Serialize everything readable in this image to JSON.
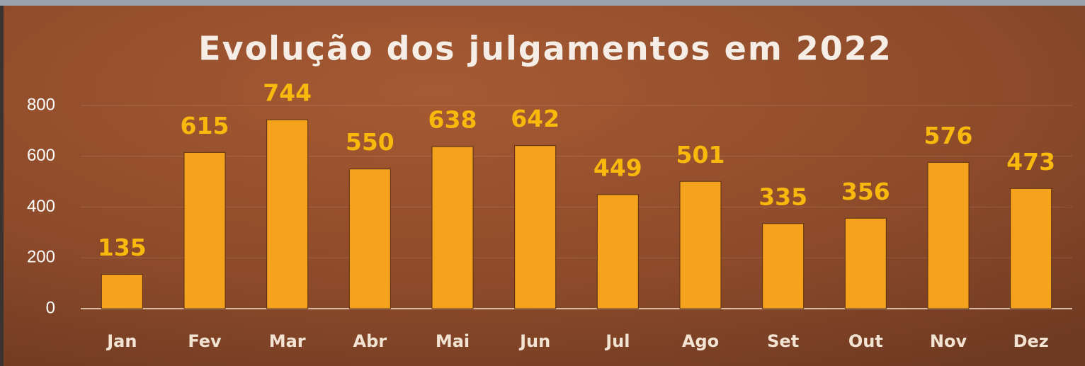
{
  "chart_data": {
    "type": "bar",
    "title": "Evolução dos julgamentos em 2022",
    "categories": [
      "Jan",
      "Fev",
      "Mar",
      "Abr",
      "Mai",
      "Jun",
      "Jul",
      "Ago",
      "Set",
      "Out",
      "Nov",
      "Dez"
    ],
    "values": [
      135,
      615,
      744,
      550,
      638,
      642,
      449,
      501,
      335,
      356,
      576,
      473
    ],
    "color": "#f5a31c",
    "ylim": [
      0,
      800
    ],
    "yticks": [
      0,
      200,
      400,
      600,
      800
    ],
    "grid": true
  }
}
